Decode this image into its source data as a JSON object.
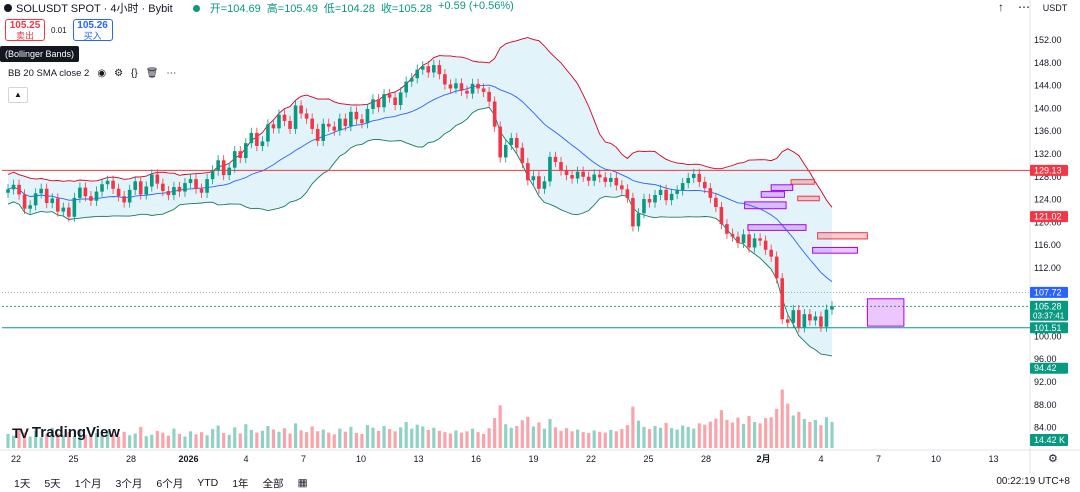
{
  "header": {
    "symbol": "SOLUSDT SPOT · 4小时 · Bybit",
    "open_label": "开=104.69",
    "high_label": "高=105.49",
    "low_label": "低=104.28",
    "close_label": "收=105.28",
    "change_label": "+0.59 (+0.56%)",
    "currency": "USDT"
  },
  "trade": {
    "sell_price": "105.25",
    "sell_label": "卖出",
    "spread": "0.01",
    "buy_price": "105.26",
    "buy_label": "买入"
  },
  "tooltip": "(Bollinger Bands)",
  "indicator": "BB 20 SMA close 2",
  "logo": "TradingView",
  "timeframes": [
    "1天",
    "5天",
    "1个月",
    "3个月",
    "6个月",
    "YTD",
    "1年",
    "全部"
  ],
  "clock": "00:22:19 UTC+8",
  "colors": {
    "up": "#089981",
    "down": "#f23645",
    "band": "#2962ff",
    "band_fill": "#d6eef8",
    "upper_band": "#d0021b",
    "lower_band": "#1b7a5a",
    "ma": "#d0021b"
  },
  "chart_data": {
    "type": "candlestick",
    "y_ticks": [
      152.0,
      148.0,
      144.0,
      140.0,
      136.0,
      132.0,
      128.0,
      124.0,
      120.0,
      116.0,
      112.0,
      108.0,
      104.0,
      100.0,
      96.0,
      92.0,
      88.0,
      84.0,
      80.0
    ],
    "ylim": [
      78.8,
      154.6
    ],
    "x_ticks": [
      "22",
      "25",
      "28",
      "2026",
      "4",
      "7",
      "10",
      "13",
      "16",
      "19",
      "22",
      "25",
      "28",
      "2月",
      "4",
      "7",
      "10",
      "13"
    ],
    "price_tags": [
      {
        "value": 129.13,
        "label": "129.13",
        "color": "#f23645"
      },
      {
        "value": 121.02,
        "label": "121.02",
        "color": "#f23645"
      },
      {
        "value": 107.72,
        "label": "107.72",
        "color": "#2962ff"
      },
      {
        "value": 105.28,
        "label": "105.28",
        "sub": "03:37:41",
        "color": "#089981"
      },
      {
        "value": 101.51,
        "label": "101.51",
        "color": "#089981"
      },
      {
        "value": 94.42,
        "label": "94.42",
        "color": "#089981"
      }
    ],
    "volume_tag": "14.42 K",
    "horizontal_lines": [
      {
        "value": 129.13,
        "color": "#f23645"
      },
      {
        "value": 101.51,
        "color": "#089981"
      }
    ],
    "zones": [
      {
        "from_x": 47.2,
        "to_x": 48.6,
        "y1": 127.5,
        "y2": 126.7,
        "color": "red"
      },
      {
        "from_x": 46.0,
        "to_x": 47.3,
        "y1": 126.6,
        "y2": 125.6,
        "color": "magenta"
      },
      {
        "from_x": 45.4,
        "to_x": 46.8,
        "y1": 125.4,
        "y2": 124.4,
        "color": "magenta"
      },
      {
        "from_x": 47.6,
        "to_x": 48.9,
        "y1": 124.6,
        "y2": 123.8,
        "color": "red"
      },
      {
        "from_x": 44.4,
        "to_x": 46.9,
        "y1": 123.6,
        "y2": 122.4,
        "color": "magenta"
      },
      {
        "from_x": 44.6,
        "to_x": 48.1,
        "y1": 119.6,
        "y2": 118.6,
        "color": "magenta"
      },
      {
        "from_x": 48.8,
        "to_x": 51.8,
        "y1": 118.2,
        "y2": 117.1,
        "color": "red"
      },
      {
        "from_x": 48.5,
        "to_x": 51.2,
        "y1": 115.6,
        "y2": 114.6,
        "color": "magenta"
      },
      {
        "from_x": 51.8,
        "to_x": 54.0,
        "y1": 106.6,
        "y2": 101.8,
        "color": "magenta"
      }
    ],
    "closes": [
      125.8,
      126.6,
      124.9,
      122.4,
      123.0,
      125.1,
      125.9,
      123.4,
      124.2,
      121.9,
      122.6,
      121.0,
      124.3,
      126.1,
      124.6,
      123.8,
      125.4,
      126.7,
      127.3,
      125.9,
      124.6,
      123.5,
      125.7,
      127.2,
      124.9,
      126.3,
      128.4,
      126.8,
      125.5,
      124.8,
      126.2,
      125.4,
      126.9,
      127.6,
      125.9,
      125.2,
      127.6,
      129.1,
      130.9,
      128.3,
      129.6,
      132.5,
      131.3,
      133.9,
      135.7,
      133.4,
      134.2,
      137.2,
      136.5,
      138.9,
      137.8,
      136.4,
      140.5,
      139.1,
      138.2,
      136.4,
      134.3,
      137.3,
      136.8,
      136.1,
      138.2,
      136.9,
      139.4,
      138.1,
      137.4,
      139.9,
      141.6,
      140.2,
      142.5,
      141.9,
      140.6,
      142.8,
      144.7,
      145.3,
      146.8,
      147.4,
      146.3,
      147.6,
      146.0,
      144.2,
      143.5,
      144.4,
      143.1,
      142.6,
      144.3,
      143.5,
      142.9,
      141.2,
      136.8,
      131.4,
      133.6,
      134.8,
      133.1,
      130.4,
      127.4,
      128.1,
      125.9,
      127.2,
      131.5,
      130.6,
      129.1,
      128.3,
      127.7,
      128.9,
      128.0,
      127.3,
      128.4,
      127.9,
      127.1,
      127.8,
      126.5,
      125.8,
      124.3,
      119.3,
      121.6,
      124.1,
      123.5,
      124.8,
      125.7,
      123.9,
      125.0,
      125.6,
      126.9,
      127.8,
      128.5,
      127.1,
      126.0,
      124.3,
      122.7,
      119.7,
      118.0,
      117.5,
      116.4,
      117.9,
      115.6,
      117.2,
      116.8,
      115.2,
      114.0,
      110.2,
      103.0,
      102.4,
      104.6,
      101.6,
      103.9,
      102.8,
      103.5,
      101.7,
      104.7,
      105.28
    ],
    "volumes": [
      3.2,
      2.8,
      4.1,
      3.5,
      2.6,
      3.9,
      2.4,
      3.1,
      4.6,
      3.3,
      2.9,
      3.6,
      2.7,
      4.2,
      3.0,
      2.5,
      3.4,
      2.8,
      4.0,
      3.1,
      2.6,
      3.7,
      2.9,
      3.3,
      4.8,
      2.7,
      3.0,
      3.9,
      3.5,
      2.8,
      4.4,
      3.2,
      2.6,
      3.8,
      3.1,
      3.6,
      2.9,
      4.3,
      5.1,
      3.4,
      3.0,
      4.7,
      3.3,
      5.4,
      4.1,
      3.5,
      3.9,
      5.0,
      4.2,
      3.7,
      4.5,
      3.3,
      5.6,
      4.0,
      3.6,
      4.9,
      3.8,
      4.2,
      3.5,
      3.1,
      4.4,
      3.7,
      4.8,
      3.4,
      3.2,
      5.2,
      4.6,
      3.9,
      5.0,
      4.3,
      3.8,
      4.7,
      5.9,
      4.4,
      5.3,
      4.9,
      4.1,
      4.6,
      3.9,
      3.6,
      3.3,
      4.0,
      3.5,
      3.8,
      4.4,
      3.6,
      3.2,
      4.5,
      6.8,
      9.7,
      5.4,
      4.6,
      5.0,
      6.3,
      7.1,
      4.9,
      5.8,
      4.4,
      6.6,
      4.7,
      3.9,
      4.5,
      3.8,
      4.2,
      3.6,
      3.4,
      4.0,
      3.7,
      3.5,
      4.1,
      3.8,
      4.3,
      5.2,
      9.4,
      6.2,
      4.8,
      4.3,
      5.0,
      4.6,
      5.7,
      4.5,
      4.2,
      5.1,
      4.8,
      4.4,
      5.6,
      5.3,
      6.0,
      6.7,
      8.6,
      6.4,
      5.8,
      6.9,
      5.5,
      7.3,
      5.9,
      5.6,
      6.8,
      7.0,
      8.9,
      13.3,
      10.1,
      7.4,
      8.2,
      6.6,
      5.9,
      6.4,
      5.2,
      7.0,
      5.9
    ]
  }
}
